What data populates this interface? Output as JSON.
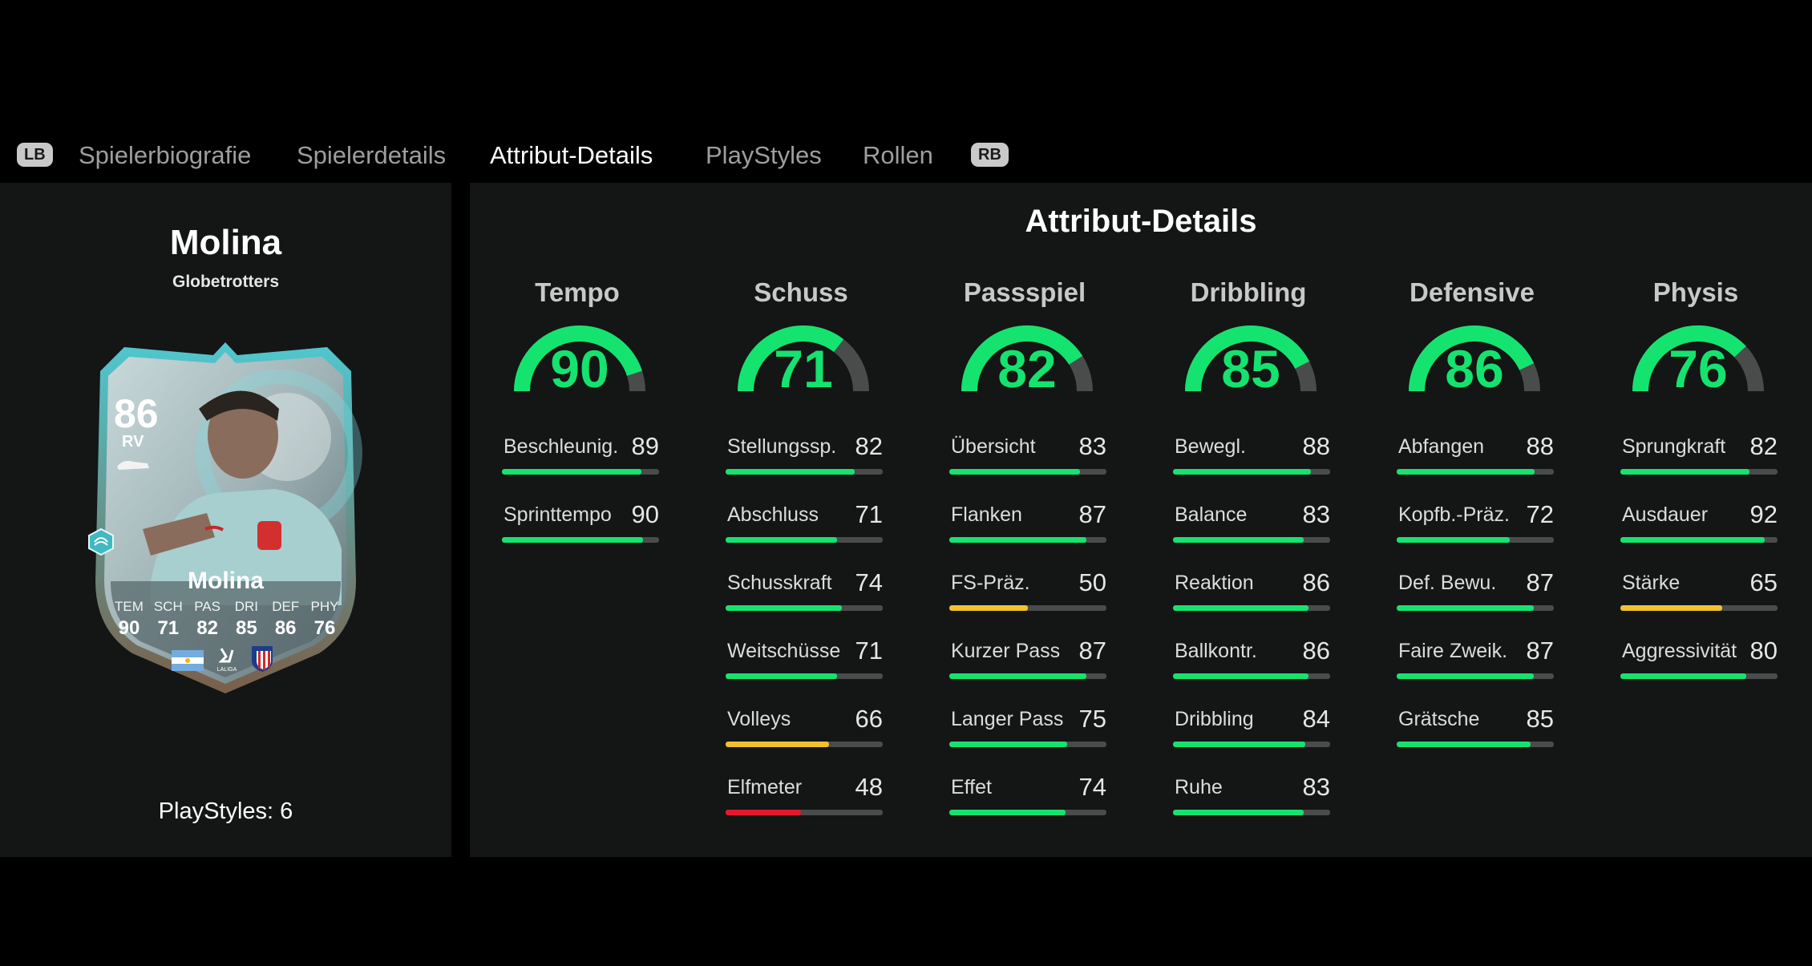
{
  "tabs": {
    "left_bumper": "LB",
    "right_bumper": "RB",
    "items": [
      {
        "label": "Spielerbiografie"
      },
      {
        "label": "Spielerdetails"
      },
      {
        "label": "Attribut-Details"
      },
      {
        "label": "PlayStyles"
      },
      {
        "label": "Rollen"
      }
    ],
    "active_index": 2
  },
  "player": {
    "name": "Molina",
    "team": "Globetrotters",
    "playstyles_label": "PlayStyles: 6"
  },
  "card": {
    "rating": "86",
    "position": "RV",
    "name": "Molina",
    "league_logo_text": "LALIGA",
    "stats": [
      {
        "label": "TEM",
        "value": "90"
      },
      {
        "label": "SCH",
        "value": "71"
      },
      {
        "label": "PAS",
        "value": "82"
      },
      {
        "label": "DRI",
        "value": "85"
      },
      {
        "label": "DEF",
        "value": "86"
      },
      {
        "label": "PHY",
        "value": "76"
      }
    ]
  },
  "details": {
    "title": "Attribut-Details",
    "categories": [
      {
        "name": "Tempo",
        "value": 90,
        "attributes": [
          {
            "name": "Beschleunig.",
            "value": 89
          },
          {
            "name": "Sprinttempo",
            "value": 90
          }
        ]
      },
      {
        "name": "Schuss",
        "value": 71,
        "attributes": [
          {
            "name": "Stellungssp.",
            "value": 82
          },
          {
            "name": "Abschluss",
            "value": 71
          },
          {
            "name": "Schusskraft",
            "value": 74
          },
          {
            "name": "Weitschüsse",
            "value": 71
          },
          {
            "name": "Volleys",
            "value": 66
          },
          {
            "name": "Elfmeter",
            "value": 48
          }
        ]
      },
      {
        "name": "Passspiel",
        "value": 82,
        "attributes": [
          {
            "name": "Übersicht",
            "value": 83
          },
          {
            "name": "Flanken",
            "value": 87
          },
          {
            "name": "FS-Präz.",
            "value": 50
          },
          {
            "name": "Kurzer Pass",
            "value": 87
          },
          {
            "name": "Langer Pass",
            "value": 75
          },
          {
            "name": "Effet",
            "value": 74
          }
        ]
      },
      {
        "name": "Dribbling",
        "value": 85,
        "attributes": [
          {
            "name": "Bewegl.",
            "value": 88
          },
          {
            "name": "Balance",
            "value": 83
          },
          {
            "name": "Reaktion",
            "value": 86
          },
          {
            "name": "Ballkontr.",
            "value": 86
          },
          {
            "name": "Dribbling",
            "value": 84
          },
          {
            "name": "Ruhe",
            "value": 83
          }
        ]
      },
      {
        "name": "Defensive",
        "value": 86,
        "attributes": [
          {
            "name": "Abfangen",
            "value": 88
          },
          {
            "name": "Kopfb.-Präz.",
            "value": 72
          },
          {
            "name": "Def. Bewu.",
            "value": 87
          },
          {
            "name": "Faire Zweik.",
            "value": 87
          },
          {
            "name": "Grätsche",
            "value": 85
          }
        ]
      },
      {
        "name": "Physis",
        "value": 76,
        "attributes": [
          {
            "name": "Sprungkraft",
            "value": 82
          },
          {
            "name": "Ausdauer",
            "value": 92
          },
          {
            "name": "Stärke",
            "value": 65
          },
          {
            "name": "Aggressivität",
            "value": 80
          }
        ]
      }
    ]
  },
  "colors": {
    "high": "#15e36f",
    "mid": "#f2c12e",
    "low": "#e5182f",
    "track": "#4a4b4b",
    "panel": "#141515"
  }
}
